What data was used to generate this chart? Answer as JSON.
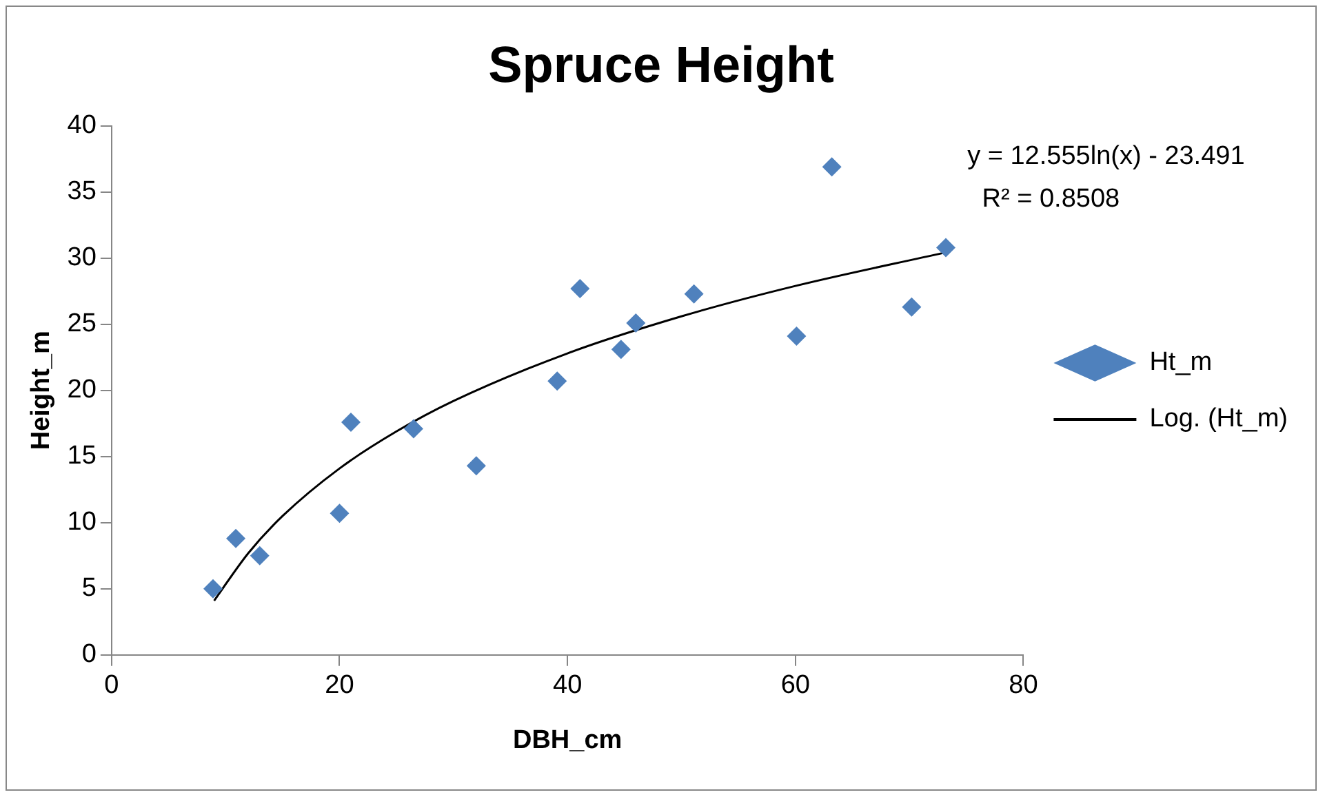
{
  "chart_data": {
    "type": "scatter",
    "title": "Spruce Height",
    "xlabel": "DBH_cm",
    "ylabel": "Height_m",
    "xlim": [
      0,
      80
    ],
    "xticks": [
      0,
      20,
      40,
      60,
      80
    ],
    "ylim": [
      0,
      40
    ],
    "yticks": [
      0,
      5,
      10,
      15,
      20,
      25,
      30,
      35,
      40
    ],
    "grid": false,
    "legend": "right",
    "marker": "diamond",
    "annotations": [
      "y = 12.555ln(x) - 23.491",
      "R² = 0.8508"
    ],
    "series": [
      {
        "name": "Ht_m",
        "color": "#4f81bd",
        "x": [
          8.9,
          10.9,
          13.0,
          20.0,
          21.0,
          26.5,
          32.0,
          39.1,
          41.1,
          44.7,
          46.0,
          51.1,
          60.1,
          63.2,
          70.2,
          73.2
        ],
        "values": [
          5.0,
          8.8,
          7.5,
          10.7,
          17.6,
          17.1,
          14.3,
          20.7,
          27.7,
          23.1,
          25.1,
          27.3,
          24.1,
          36.9,
          26.3,
          30.8
        ]
      },
      {
        "name": "Log. (Ht_m)",
        "type": "line",
        "color": "#000000",
        "marker": "none",
        "line_style": "solid",
        "x": [
          9,
          12,
          15,
          20,
          25,
          30,
          40,
          50,
          60,
          73
        ],
        "values": [
          4.1,
          7.7,
          10.5,
          14.1,
          16.9,
          19.2,
          22.8,
          25.6,
          27.9,
          30.4
        ]
      }
    ]
  }
}
